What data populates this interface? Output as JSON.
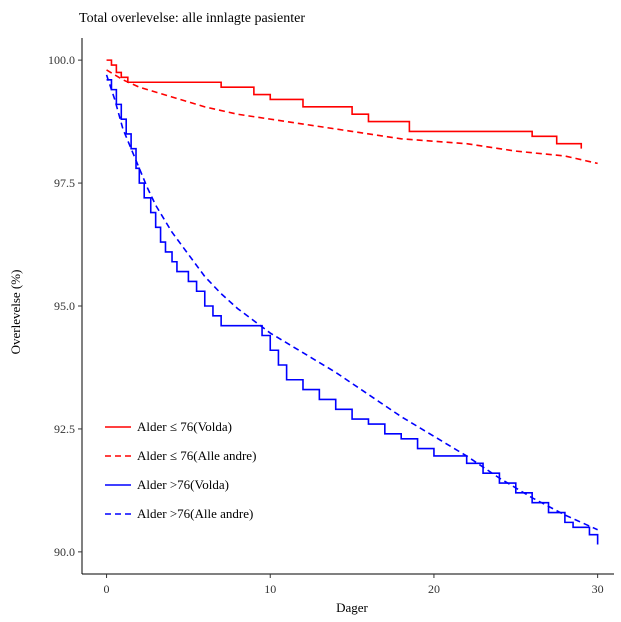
{
  "chart_data": {
    "type": "line",
    "title": "Total overlevelse: alle innlagte pasienter",
    "xlabel": "Dager",
    "ylabel": "Overlevelse (%)",
    "xlim": [
      -1.5,
      31
    ],
    "ylim": [
      89.55,
      100.45
    ],
    "xticks": [
      0,
      10,
      20,
      30
    ],
    "xtick_labels": [
      "0",
      "10",
      "20",
      "30"
    ],
    "yticks": [
      90,
      92.5,
      95,
      97.5,
      100
    ],
    "ytick_labels": [
      "90.0",
      "92.5",
      "95.0",
      "97.5",
      "100.0"
    ],
    "grid": false,
    "legend_position": "bottom-left",
    "series": [
      {
        "name": "Alder ≤ 76(Volda)",
        "color": "#ff0000",
        "dash": "solid",
        "step": true,
        "x": [
          0,
          0.3,
          0.6,
          0.9,
          1.3,
          7,
          9,
          10,
          12,
          15,
          16,
          18.5,
          26,
          27.5,
          29
        ],
        "y": [
          100,
          99.9,
          99.75,
          99.65,
          99.55,
          99.45,
          99.3,
          99.2,
          99.05,
          98.9,
          98.75,
          98.55,
          98.45,
          98.3,
          98.2
        ]
      },
      {
        "name": "Alder ≤ 76(Alle andre)",
        "color": "#ff0000",
        "dash": "dashed",
        "step": false,
        "x": [
          0,
          1,
          2,
          4,
          6,
          8,
          10,
          12,
          15,
          18,
          20,
          22,
          25,
          28,
          30
        ],
        "y": [
          99.8,
          99.6,
          99.45,
          99.25,
          99.05,
          98.9,
          98.8,
          98.7,
          98.55,
          98.4,
          98.35,
          98.3,
          98.15,
          98.05,
          97.9
        ]
      },
      {
        "name": "Alder >76(Volda)",
        "color": "#0000ff",
        "dash": "solid",
        "step": true,
        "x": [
          0,
          0.3,
          0.6,
          0.9,
          1.2,
          1.5,
          1.8,
          2.0,
          2.3,
          2.7,
          3.0,
          3.3,
          3.6,
          4.0,
          4.3,
          5.0,
          5.5,
          6.0,
          6.5,
          7.0,
          9.5,
          10.0,
          10.5,
          11.0,
          12.0,
          13.0,
          14.0,
          15.0,
          16.0,
          17.0,
          18.0,
          19.0,
          20.0,
          22.0,
          23.0,
          24.0,
          25.0,
          26.0,
          27.0,
          28.0,
          28.5,
          29.5,
          30.0
        ],
        "y": [
          99.6,
          99.4,
          99.1,
          98.8,
          98.5,
          98.2,
          97.8,
          97.5,
          97.2,
          96.9,
          96.6,
          96.3,
          96.1,
          95.9,
          95.7,
          95.5,
          95.3,
          95.0,
          94.8,
          94.6,
          94.4,
          94.1,
          93.8,
          93.5,
          93.3,
          93.1,
          92.9,
          92.7,
          92.6,
          92.4,
          92.3,
          92.1,
          91.95,
          91.8,
          91.6,
          91.4,
          91.2,
          91.0,
          90.8,
          90.6,
          90.5,
          90.35,
          90.15
        ]
      },
      {
        "name": "Alder >76(Alle andre)",
        "color": "#0000ff",
        "dash": "dashed",
        "step": false,
        "x": [
          0,
          0.5,
          1,
          1.5,
          2,
          2.5,
          3,
          4,
          5,
          6,
          7,
          8,
          9,
          10,
          12,
          14,
          16,
          18,
          20,
          22,
          24,
          26,
          28,
          30
        ],
        "y": [
          99.7,
          99.2,
          98.6,
          98.2,
          97.8,
          97.4,
          97.05,
          96.5,
          96.05,
          95.6,
          95.25,
          94.95,
          94.7,
          94.45,
          94.05,
          93.65,
          93.2,
          92.75,
          92.35,
          91.95,
          91.5,
          91.1,
          90.75,
          90.45
        ]
      }
    ]
  }
}
